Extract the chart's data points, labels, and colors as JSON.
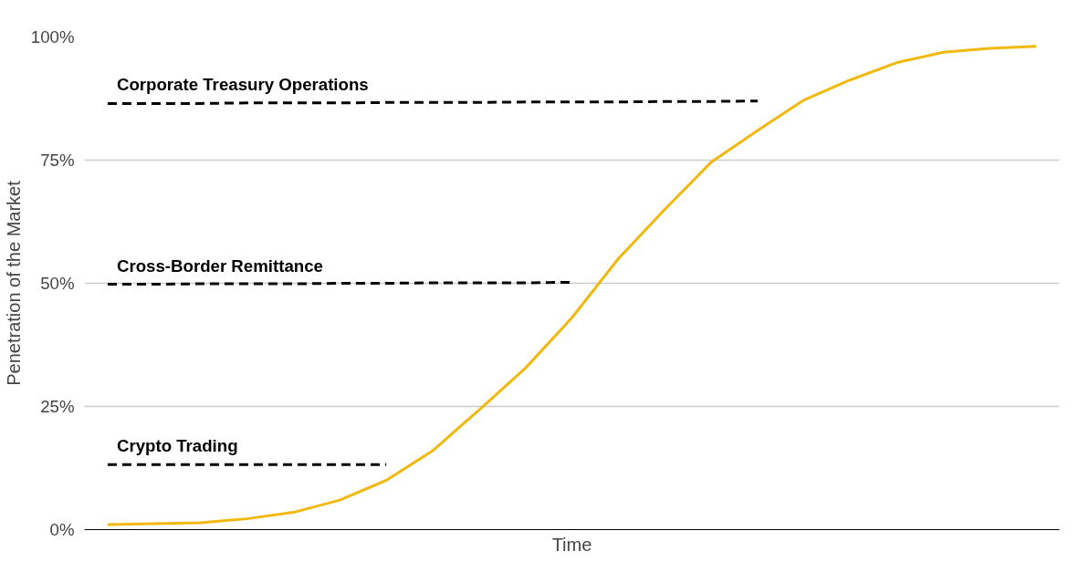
{
  "chart_data": {
    "type": "line",
    "xlabel": "Time",
    "ylabel": "Penetration of the Market",
    "categories": [
      null,
      null,
      null,
      null,
      null,
      null,
      null,
      null,
      null,
      null,
      null,
      null,
      null,
      null,
      null,
      null,
      null,
      null,
      null,
      null,
      null
    ],
    "ylim": [
      0,
      100
    ],
    "yticks": [
      {
        "value": 0,
        "label": "0%"
      },
      {
        "value": 25,
        "label": "25%"
      },
      {
        "value": 50,
        "label": "50%"
      },
      {
        "value": 75,
        "label": "75%"
      },
      {
        "value": 100,
        "label": "100%"
      }
    ],
    "grid": "y",
    "marker": "none",
    "series": [
      {
        "color": "#f1b90f",
        "line_style": "solid",
        "values": [
          1.0,
          1.2,
          1.4,
          2.2,
          3.5,
          6,
          10,
          16,
          24.3,
          32.8,
          43,
          55,
          65,
          74.6,
          81,
          87.2,
          91.3,
          94.8,
          96.9,
          97.7,
          98.1
        ]
      },
      {
        "name": "Corporate Treasury Operations",
        "color": "#000000",
        "line_style": "dashed",
        "values": [
          86.5,
          86.5,
          86.5,
          86.6,
          86.6,
          86.6,
          86.7,
          86.7,
          86.7,
          86.8,
          86.8,
          86.8,
          86.9,
          86.9,
          87,
          null,
          null,
          null,
          null,
          null,
          null
        ]
      },
      {
        "name": "Cross-Border Remittance",
        "color": "#000000",
        "line_style": "dashed",
        "values": [
          49.8,
          49.8,
          49.9,
          49.9,
          49.9,
          50,
          50,
          50.1,
          50.1,
          50.1,
          50.2,
          null,
          null,
          null,
          null,
          null,
          null,
          null,
          null,
          null,
          null
        ]
      },
      {
        "name": "Crypto Trading",
        "color": "#000000",
        "line_style": "dashed",
        "values": [
          13.2,
          13.2,
          13.2,
          13.2,
          13.2,
          13.2,
          13.2,
          null,
          null,
          null,
          null,
          null,
          null,
          null,
          null,
          null,
          null,
          null,
          null,
          null,
          null
        ]
      }
    ]
  }
}
